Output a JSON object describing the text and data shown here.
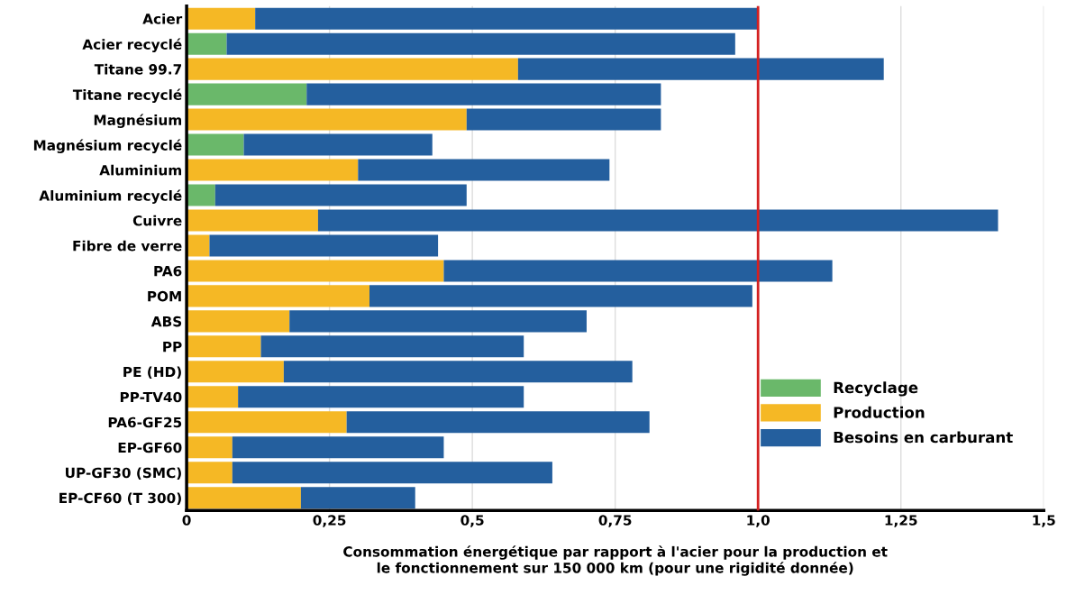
{
  "chart_data": {
    "type": "bar",
    "orientation": "horizontal",
    "stacked": true,
    "xlabel": "Consommation énergétique par rapport à l'acier pour la production et\nle fonctionnement sur 150 000 km (pour une rigidité donnée)",
    "categories": [
      "Acier",
      "Acier recyclé",
      "Titane 99.7",
      "Titane recyclé",
      "Magnésium",
      "Magnésium recyclé",
      "Aluminium",
      "Aluminium recyclé",
      "Cuivre",
      "Fibre de verre",
      "PA6",
      "POM",
      "ABS",
      "PP",
      "PE (HD)",
      "PP-TV40",
      "PA6-GF25",
      "EP-GF60",
      "UP-GF30 (SMC)",
      "EP-CF60 (T 300)"
    ],
    "series": [
      {
        "name": "Recyclage",
        "color": "#6ab86a",
        "values": [
          null,
          0.07,
          null,
          0.21,
          null,
          0.1,
          null,
          0.05,
          null,
          null,
          null,
          null,
          null,
          null,
          null,
          null,
          null,
          null,
          null,
          null
        ]
      },
      {
        "name": "Production",
        "color": "#f5b825",
        "values": [
          0.12,
          null,
          0.58,
          null,
          0.49,
          null,
          0.3,
          null,
          0.23,
          0.04,
          0.45,
          0.32,
          0.18,
          0.13,
          0.17,
          0.09,
          0.28,
          0.08,
          0.08,
          0.2
        ]
      },
      {
        "name": "Besoins en carburant",
        "color": "#245f9e",
        "values": [
          0.88,
          0.89,
          0.64,
          0.62,
          0.34,
          0.33,
          0.44,
          0.44,
          1.19,
          0.4,
          0.68,
          0.67,
          0.52,
          0.46,
          0.61,
          0.5,
          0.53,
          0.37,
          0.56,
          0.2
        ]
      }
    ],
    "xlim": [
      0,
      1.5
    ],
    "xticks": [
      0,
      {
        "value": 0.25,
        "label": "0,25"
      },
      {
        "value": 0.5,
        "label": "0,5"
      },
      {
        "value": 0.75,
        "label": "0,75"
      },
      {
        "value": 1.0,
        "label": "1,0"
      },
      {
        "value": 1.25,
        "label": "1,25"
      },
      {
        "value": 1.5,
        "label": "1,5"
      }
    ],
    "ref_lines": [
      {
        "axis": "x",
        "value": 1.0,
        "label": null,
        "color": "#d42020"
      }
    ],
    "grid": "x",
    "legend": "bottom right"
  }
}
